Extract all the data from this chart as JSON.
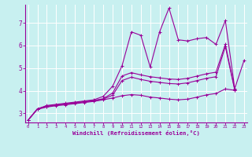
{
  "xlabel": "Windchill (Refroidissement éolien,°C)",
  "background_color": "#c8f0f0",
  "grid_color": "#ffffff",
  "line_color": "#990099",
  "x_ticks": [
    0,
    1,
    2,
    3,
    4,
    5,
    6,
    7,
    8,
    9,
    10,
    11,
    12,
    13,
    14,
    15,
    16,
    17,
    18,
    19,
    20,
    21,
    22,
    23
  ],
  "y_ticks": [
    3,
    4,
    5,
    6,
    7
  ],
  "xlim": [
    -0.3,
    23.3
  ],
  "ylim": [
    2.6,
    7.8
  ],
  "series1_x": [
    0,
    1,
    2,
    3,
    4,
    5,
    6,
    7,
    8,
    9,
    10,
    11,
    12,
    13,
    14,
    15,
    16,
    17,
    18,
    19,
    20,
    21,
    22,
    23
  ],
  "series1_y": [
    2.7,
    3.2,
    3.35,
    3.4,
    3.45,
    3.5,
    3.55,
    3.6,
    3.75,
    4.2,
    5.1,
    6.6,
    6.45,
    5.05,
    6.6,
    7.65,
    6.25,
    6.2,
    6.3,
    6.35,
    6.05,
    7.1,
    4.1,
    5.35
  ],
  "series2_x": [
    0,
    1,
    2,
    3,
    4,
    5,
    6,
    7,
    8,
    9,
    10,
    11,
    12,
    13,
    14,
    15,
    16,
    17,
    18,
    19,
    20,
    21,
    22
  ],
  "series2_y": [
    2.7,
    3.2,
    3.32,
    3.37,
    3.42,
    3.47,
    3.52,
    3.57,
    3.65,
    3.9,
    4.65,
    4.8,
    4.7,
    4.62,
    4.57,
    4.52,
    4.5,
    4.55,
    4.65,
    4.75,
    4.82,
    6.05,
    4.05
  ],
  "series3_x": [
    0,
    1,
    2,
    3,
    4,
    5,
    6,
    7,
    8,
    9,
    10,
    11,
    12,
    13,
    14,
    15,
    16,
    17,
    18,
    19,
    20,
    21,
    22
  ],
  "series3_y": [
    2.7,
    3.2,
    3.3,
    3.36,
    3.41,
    3.46,
    3.51,
    3.56,
    3.63,
    3.8,
    4.45,
    4.6,
    4.5,
    4.42,
    4.37,
    4.32,
    4.3,
    4.35,
    4.45,
    4.55,
    4.62,
    5.95,
    4.03
  ],
  "series4_x": [
    0,
    1,
    2,
    3,
    4,
    5,
    6,
    7,
    8,
    9,
    10,
    11,
    12,
    13,
    14,
    15,
    16,
    17,
    18,
    19,
    20,
    21,
    22
  ],
  "series4_y": [
    2.7,
    3.18,
    3.28,
    3.34,
    3.38,
    3.43,
    3.48,
    3.53,
    3.6,
    3.68,
    3.78,
    3.83,
    3.8,
    3.72,
    3.68,
    3.63,
    3.6,
    3.63,
    3.72,
    3.82,
    3.88,
    4.08,
    4.02
  ]
}
